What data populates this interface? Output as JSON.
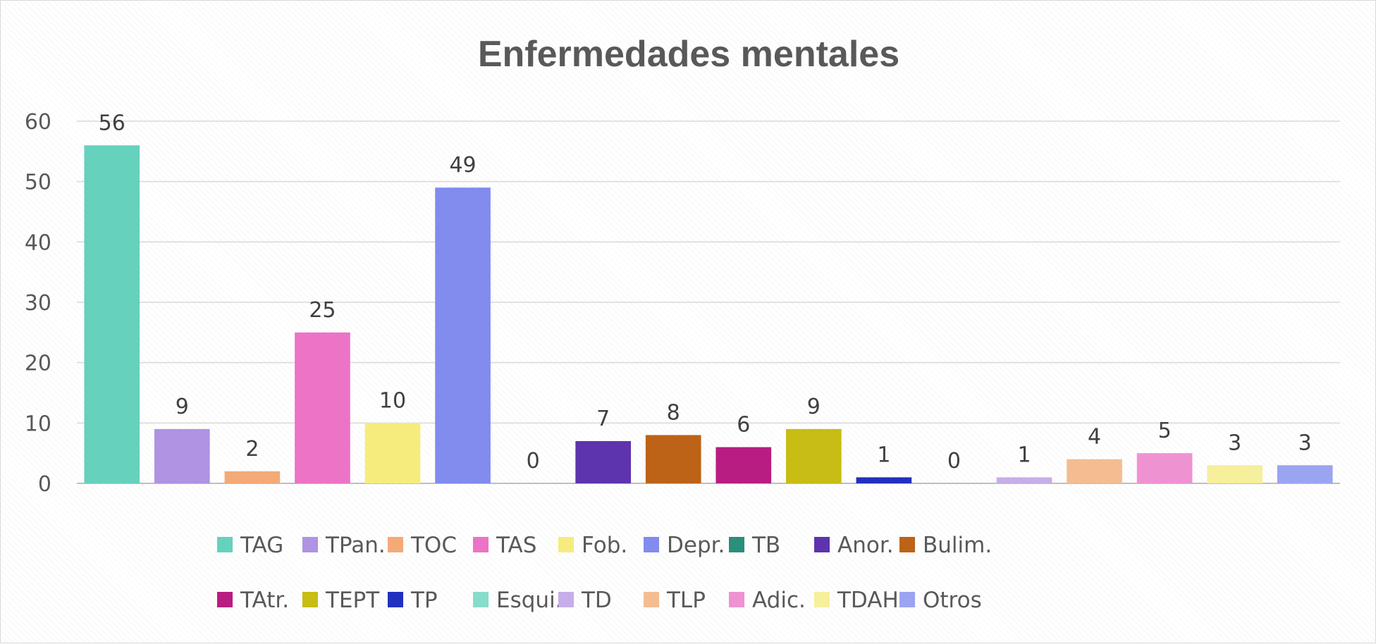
{
  "chart_data": {
    "type": "bar",
    "title": "Enfermedades mentales",
    "xlabel": "",
    "ylabel": "",
    "ylim": [
      0,
      60
    ],
    "yticks": [
      0,
      10,
      20,
      30,
      40,
      50,
      60
    ],
    "grid": true,
    "legend_position": "bottom",
    "categories": [
      "TAG",
      "TPan.",
      "TOC",
      "TAS",
      "Fob.",
      "Depr.",
      "TB",
      "Anor.",
      "Bulim.",
      "TAtr.",
      "TEPT",
      "TP",
      "Esqui.",
      "TD",
      "TLP",
      "Adic.",
      "TDAH",
      "Otros"
    ],
    "values": [
      56,
      9,
      2,
      25,
      10,
      49,
      0,
      7,
      8,
      6,
      9,
      1,
      0,
      1,
      4,
      5,
      3,
      3
    ],
    "colors": [
      "#66d1bd",
      "#b093e2",
      "#f3aa78",
      "#ec73c6",
      "#f6ec7e",
      "#828bee",
      "#2a8f7b",
      "#5e33ae",
      "#bc6317",
      "#b81d82",
      "#c7bd14",
      "#2230be",
      "#87dcca",
      "#c6aee9",
      "#f4bd91",
      "#ef92d2",
      "#f6ef9c",
      "#9ba4f1"
    ]
  }
}
